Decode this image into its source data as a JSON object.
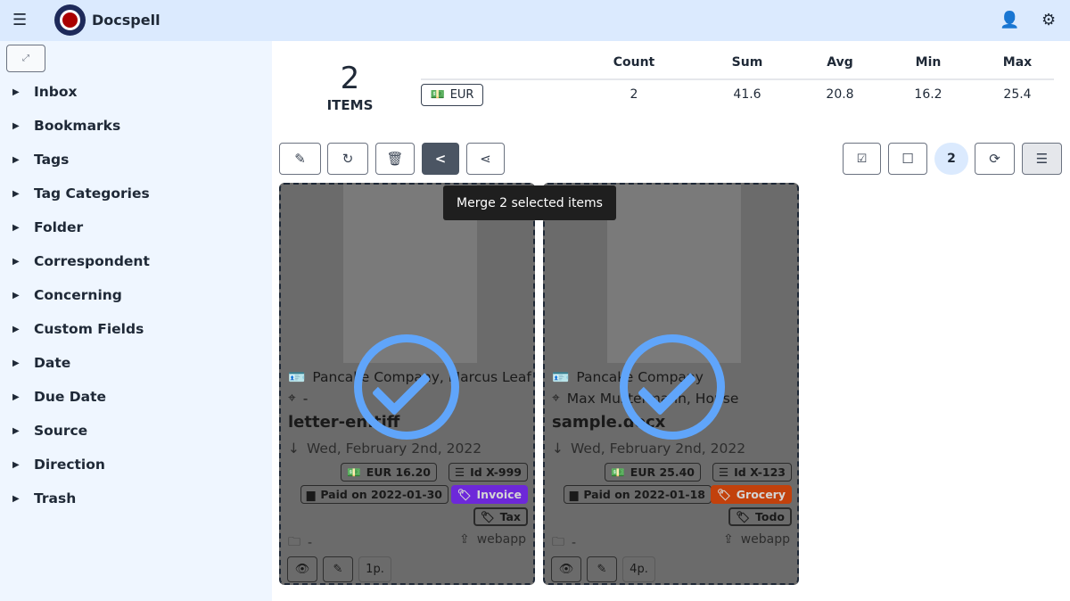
{
  "app": {
    "title": "Docspell"
  },
  "sidebar": {
    "items": [
      {
        "label": "Inbox"
      },
      {
        "label": "Bookmarks"
      },
      {
        "label": "Tags"
      },
      {
        "label": "Tag Categories"
      },
      {
        "label": "Folder"
      },
      {
        "label": "Correspondent"
      },
      {
        "label": "Concerning"
      },
      {
        "label": "Custom Fields"
      },
      {
        "label": "Date"
      },
      {
        "label": "Due Date"
      },
      {
        "label": "Source"
      },
      {
        "label": "Direction"
      },
      {
        "label": "Trash"
      }
    ]
  },
  "stats": {
    "count": "2",
    "items_label": "ITEMS",
    "headers": [
      "Count",
      "Sum",
      "Avg",
      "Min",
      "Max"
    ],
    "currency": "EUR",
    "values": [
      "2",
      "41.6",
      "20.8",
      "16.2",
      "25.4"
    ]
  },
  "toolbar": {
    "selected_count": "2",
    "tooltip": "Merge 2 selected items"
  },
  "colors": {
    "accent": "#60a5fa",
    "invoice": "#6d28d9",
    "grocery": "#c2410c"
  },
  "cards": [
    {
      "correspondent": "Pancake Company, Marcus Leaf",
      "concerning": "-",
      "name": "letter-en.tiff",
      "date": "Wed, February 2nd, 2022",
      "amount": "EUR  16.20",
      "id": "Id  X-999",
      "paid": "Paid on  2022-01-30",
      "tag1": "Invoice",
      "tag2": "Tax",
      "folder": "-",
      "source": "webapp",
      "pages": "1p."
    },
    {
      "correspondent": "Pancake Company",
      "concerning": "Max Mustermann, House",
      "name": "sample.docx",
      "date": "Wed, February 2nd, 2022",
      "amount": "EUR  25.40",
      "id": "Id  X-123",
      "paid": "Paid on  2022-01-18",
      "tag1": "Grocery",
      "tag2": "Todo",
      "folder": "-",
      "source": "webapp",
      "pages": "4p."
    }
  ]
}
